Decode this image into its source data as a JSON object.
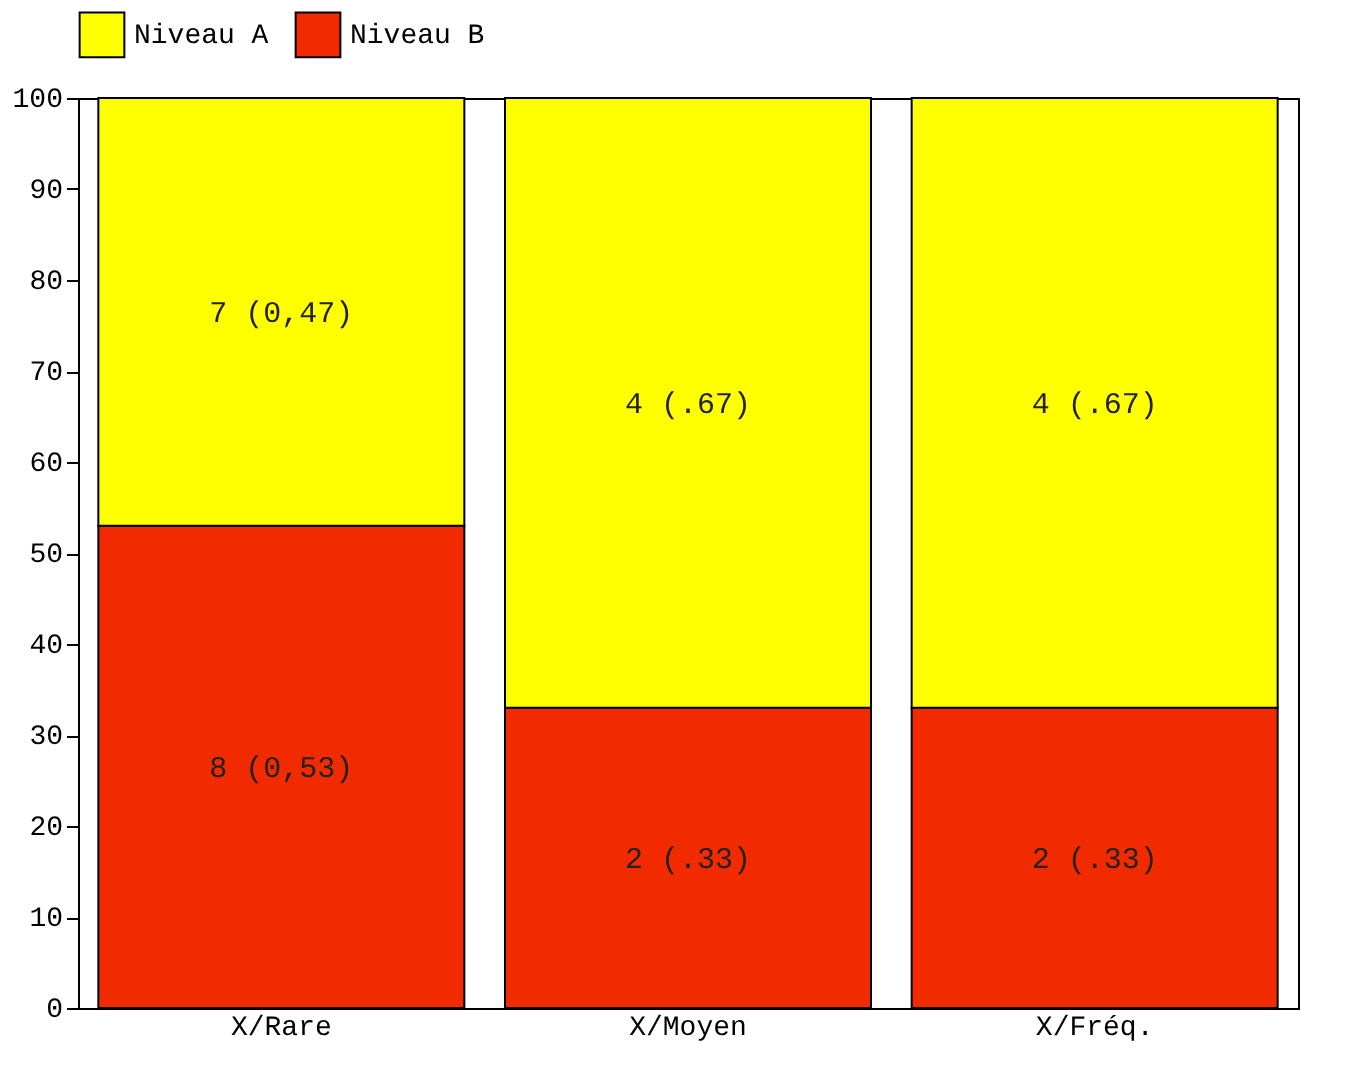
{
  "chart_data": {
    "type": "bar",
    "stacked": true,
    "categories": [
      "X/Rare",
      "X/Moyen",
      "X/Fréq."
    ],
    "series": [
      {
        "name": "Niveau B",
        "color": "#f22a00",
        "values": [
          53,
          33,
          33
        ]
      },
      {
        "name": "Niveau A",
        "color": "#ffff00",
        "values": [
          47,
          67,
          67
        ]
      }
    ],
    "annotations": [
      "8 (0,53)",
      "2 (.33)",
      "2 (.33)",
      "7 (0,47)",
      "4 (.67)",
      "4 (.67)"
    ],
    "ylim": [
      0,
      100
    ],
    "yticks": [
      0,
      10,
      20,
      30,
      40,
      50,
      60,
      70,
      80,
      90,
      100
    ],
    "grid": false,
    "legend": "top"
  }
}
